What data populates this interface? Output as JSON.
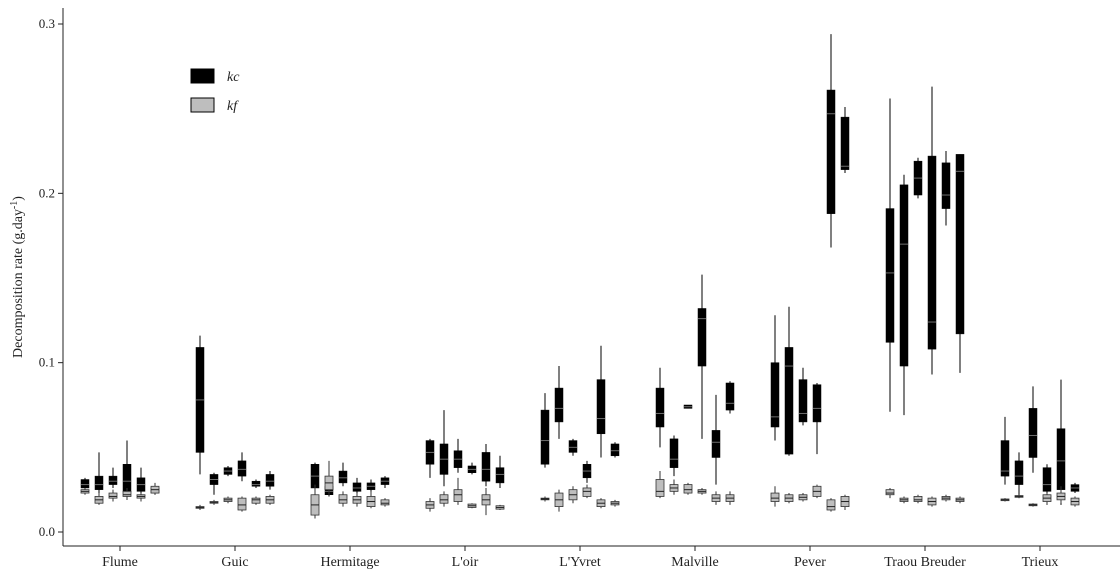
{
  "chart_data": {
    "type": "boxplot",
    "ylabel": "Decomposition rate (g.day",
    "ylabel_sup": "-1",
    "ylabel_end": ")",
    "ylim": [
      0,
      0.3
    ],
    "yticks": [
      "0.0",
      "0.1",
      "0.2",
      "0.3"
    ],
    "grid": false,
    "legend_position": "top-left",
    "legend": [
      {
        "name": "kc",
        "color": "#000000"
      },
      {
        "name": "kf",
        "color": "#bebebe"
      }
    ],
    "categories": [
      "Flume",
      "Guic",
      "Hermitage",
      "L'oir",
      "L'Yvret",
      "Malville",
      "Pever",
      "Traou  Breuder",
      "Trieux"
    ],
    "groups": [
      {
        "kc": [
          {
            "q1": 0.026,
            "median": 0.028,
            "q3": 0.031,
            "whisker_low": 0.025,
            "whisker_high": 0.032
          },
          {
            "q1": 0.025,
            "median": 0.028,
            "q3": 0.033,
            "whisker_low": 0.023,
            "whisker_high": 0.047
          },
          {
            "q1": 0.028,
            "median": 0.03,
            "q3": 0.033,
            "whisker_low": 0.026,
            "whisker_high": 0.038
          },
          {
            "q1": 0.024,
            "median": 0.03,
            "q3": 0.04,
            "whisker_low": 0.019,
            "whisker_high": 0.054
          },
          {
            "q1": 0.024,
            "median": 0.028,
            "q3": 0.032,
            "whisker_low": 0.02,
            "whisker_high": 0.038
          },
          {
            "q1": 0.023,
            "median": 0.024,
            "q3": 0.026,
            "whisker_low": 0.022,
            "whisker_high": 0.028
          }
        ],
        "kf": [
          {
            "q1": 0.023,
            "median": 0.024,
            "q3": 0.025,
            "whisker_low": 0.022,
            "whisker_high": 0.026
          },
          {
            "q1": 0.017,
            "median": 0.019,
            "q3": 0.021,
            "whisker_low": 0.016,
            "whisker_high": 0.023
          },
          {
            "q1": 0.02,
            "median": 0.021,
            "q3": 0.023,
            "whisker_low": 0.018,
            "whisker_high": 0.025
          },
          {
            "q1": 0.021,
            "median": 0.022,
            "q3": 0.024,
            "whisker_low": 0.019,
            "whisker_high": 0.026
          },
          {
            "q1": 0.02,
            "median": 0.021,
            "q3": 0.022,
            "whisker_low": 0.018,
            "whisker_high": 0.023
          },
          {
            "q1": 0.023,
            "median": 0.025,
            "q3": 0.027,
            "whisker_low": 0.022,
            "whisker_high": 0.029
          }
        ]
      },
      {
        "kc": [
          {
            "q1": 0.047,
            "median": 0.078,
            "q3": 0.109,
            "whisker_low": 0.034,
            "whisker_high": 0.116
          },
          {
            "q1": 0.028,
            "median": 0.031,
            "q3": 0.034,
            "whisker_low": 0.022,
            "whisker_high": 0.035
          },
          {
            "q1": 0.034,
            "median": 0.036,
            "q3": 0.038,
            "whisker_low": 0.033,
            "whisker_high": 0.039
          },
          {
            "q1": 0.033,
            "median": 0.037,
            "q3": 0.042,
            "whisker_low": 0.03,
            "whisker_high": 0.047
          },
          {
            "q1": 0.027,
            "median": 0.028,
            "q3": 0.03,
            "whisker_low": 0.026,
            "whisker_high": 0.031
          },
          {
            "q1": 0.027,
            "median": 0.03,
            "q3": 0.034,
            "whisker_low": 0.025,
            "whisker_high": 0.036
          }
        ],
        "kf": [
          {
            "q1": 0.014,
            "median": 0.0145,
            "q3": 0.015,
            "whisker_low": 0.013,
            "whisker_high": 0.016
          },
          {
            "q1": 0.017,
            "median": 0.0175,
            "q3": 0.018,
            "whisker_low": 0.016,
            "whisker_high": 0.019
          },
          {
            "q1": 0.018,
            "median": 0.019,
            "q3": 0.02,
            "whisker_low": 0.017,
            "whisker_high": 0.021
          },
          {
            "q1": 0.013,
            "median": 0.016,
            "q3": 0.02,
            "whisker_low": 0.012,
            "whisker_high": 0.021
          },
          {
            "q1": 0.017,
            "median": 0.019,
            "q3": 0.02,
            "whisker_low": 0.016,
            "whisker_high": 0.021
          },
          {
            "q1": 0.017,
            "median": 0.019,
            "q3": 0.021,
            "whisker_low": 0.016,
            "whisker_high": 0.022
          }
        ]
      },
      {
        "kc": [
          {
            "q1": 0.026,
            "median": 0.033,
            "q3": 0.04,
            "whisker_low": 0.02,
            "whisker_high": 0.041
          },
          {
            "q1": 0.022,
            "median": 0.024,
            "q3": 0.027,
            "whisker_low": 0.021,
            "whisker_high": 0.036
          },
          {
            "q1": 0.029,
            "median": 0.032,
            "q3": 0.036,
            "whisker_low": 0.027,
            "whisker_high": 0.041
          },
          {
            "q1": 0.024,
            "median": 0.026,
            "q3": 0.029,
            "whisker_low": 0.022,
            "whisker_high": 0.032
          },
          {
            "q1": 0.025,
            "median": 0.027,
            "q3": 0.029,
            "whisker_low": 0.023,
            "whisker_high": 0.031
          },
          {
            "q1": 0.028,
            "median": 0.03,
            "q3": 0.032,
            "whisker_low": 0.026,
            "whisker_high": 0.033
          }
        ],
        "kf": [
          {
            "q1": 0.01,
            "median": 0.016,
            "q3": 0.022,
            "whisker_low": 0.008,
            "whisker_high": 0.028
          },
          {
            "q1": 0.025,
            "median": 0.029,
            "q3": 0.033,
            "whisker_low": 0.022,
            "whisker_high": 0.042
          },
          {
            "q1": 0.017,
            "median": 0.019,
            "q3": 0.022,
            "whisker_low": 0.015,
            "whisker_high": 0.024
          },
          {
            "q1": 0.017,
            "median": 0.019,
            "q3": 0.021,
            "whisker_low": 0.015,
            "whisker_high": 0.023
          },
          {
            "q1": 0.015,
            "median": 0.018,
            "q3": 0.021,
            "whisker_low": 0.014,
            "whisker_high": 0.024
          },
          {
            "q1": 0.016,
            "median": 0.017,
            "q3": 0.019,
            "whisker_low": 0.015,
            "whisker_high": 0.02
          }
        ]
      },
      {
        "kc": [
          {
            "q1": 0.04,
            "median": 0.047,
            "q3": 0.054,
            "whisker_low": 0.032,
            "whisker_high": 0.055
          },
          {
            "q1": 0.034,
            "median": 0.043,
            "q3": 0.052,
            "whisker_low": 0.027,
            "whisker_high": 0.072
          },
          {
            "q1": 0.038,
            "median": 0.043,
            "q3": 0.048,
            "whisker_low": 0.035,
            "whisker_high": 0.055
          },
          {
            "q1": 0.035,
            "median": 0.037,
            "q3": 0.039,
            "whisker_low": 0.034,
            "whisker_high": 0.041
          },
          {
            "q1": 0.03,
            "median": 0.037,
            "q3": 0.047,
            "whisker_low": 0.027,
            "whisker_high": 0.052
          },
          {
            "q1": 0.029,
            "median": 0.034,
            "q3": 0.038,
            "whisker_low": 0.026,
            "whisker_high": 0.045
          }
        ],
        "kf": [
          {
            "q1": 0.014,
            "median": 0.016,
            "q3": 0.018,
            "whisker_low": 0.012,
            "whisker_high": 0.02
          },
          {
            "q1": 0.017,
            "median": 0.019,
            "q3": 0.022,
            "whisker_low": 0.015,
            "whisker_high": 0.024
          },
          {
            "q1": 0.018,
            "median": 0.022,
            "q3": 0.025,
            "whisker_low": 0.016,
            "whisker_high": 0.032
          },
          {
            "q1": 0.0145,
            "median": 0.0155,
            "q3": 0.0165,
            "whisker_low": 0.014,
            "whisker_high": 0.017
          },
          {
            "q1": 0.016,
            "median": 0.019,
            "q3": 0.022,
            "whisker_low": 0.01,
            "whisker_high": 0.026
          },
          {
            "q1": 0.0135,
            "median": 0.0145,
            "q3": 0.0155,
            "whisker_low": 0.013,
            "whisker_high": 0.016
          }
        ]
      },
      {
        "kc": [
          {
            "q1": 0.04,
            "median": 0.054,
            "q3": 0.072,
            "whisker_low": 0.038,
            "whisker_high": 0.082
          },
          {
            "q1": 0.065,
            "median": 0.073,
            "q3": 0.085,
            "whisker_low": 0.055,
            "whisker_high": 0.098
          },
          {
            "q1": 0.047,
            "median": 0.05,
            "q3": 0.054,
            "whisker_low": 0.045,
            "whisker_high": 0.055
          },
          {
            "q1": 0.032,
            "median": 0.036,
            "q3": 0.04,
            "whisker_low": 0.029,
            "whisker_high": 0.042
          },
          {
            "q1": 0.058,
            "median": 0.067,
            "q3": 0.09,
            "whisker_low": 0.044,
            "whisker_high": 0.11
          },
          {
            "q1": 0.045,
            "median": 0.048,
            "q3": 0.052,
            "whisker_low": 0.044,
            "whisker_high": 0.053
          }
        ],
        "kf": [
          {
            "q1": 0.019,
            "median": 0.0195,
            "q3": 0.02,
            "whisker_low": 0.018,
            "whisker_high": 0.021
          },
          {
            "q1": 0.015,
            "median": 0.019,
            "q3": 0.023,
            "whisker_low": 0.012,
            "whisker_high": 0.025
          },
          {
            "q1": 0.019,
            "median": 0.022,
            "q3": 0.025,
            "whisker_low": 0.017,
            "whisker_high": 0.027
          },
          {
            "q1": 0.021,
            "median": 0.024,
            "q3": 0.026,
            "whisker_low": 0.02,
            "whisker_high": 0.028
          },
          {
            "q1": 0.015,
            "median": 0.017,
            "q3": 0.019,
            "whisker_low": 0.014,
            "whisker_high": 0.02
          },
          {
            "q1": 0.016,
            "median": 0.017,
            "q3": 0.018,
            "whisker_low": 0.015,
            "whisker_high": 0.019
          }
        ]
      },
      {
        "kc": [
          {
            "q1": 0.062,
            "median": 0.07,
            "q3": 0.085,
            "whisker_low": 0.05,
            "whisker_high": 0.097
          },
          {
            "q1": 0.038,
            "median": 0.043,
            "q3": 0.055,
            "whisker_low": 0.033,
            "whisker_high": 0.057
          },
          {
            "q1": 0.073,
            "median": 0.074,
            "q3": 0.075,
            "whisker_low": 0.073,
            "whisker_high": 0.075
          },
          {
            "q1": 0.098,
            "median": 0.126,
            "q3": 0.132,
            "whisker_low": 0.055,
            "whisker_high": 0.152
          },
          {
            "q1": 0.044,
            "median": 0.053,
            "q3": 0.06,
            "whisker_low": 0.028,
            "whisker_high": 0.081
          },
          {
            "q1": 0.072,
            "median": 0.076,
            "q3": 0.088,
            "whisker_low": 0.07,
            "whisker_high": 0.089
          }
        ],
        "kf": [
          {
            "q1": 0.021,
            "median": 0.024,
            "q3": 0.031,
            "whisker_low": 0.02,
            "whisker_high": 0.036
          },
          {
            "q1": 0.024,
            "median": 0.026,
            "q3": 0.028,
            "whisker_low": 0.022,
            "whisker_high": 0.031
          },
          {
            "q1": 0.023,
            "median": 0.025,
            "q3": 0.028,
            "whisker_low": 0.022,
            "whisker_high": 0.029
          },
          {
            "q1": 0.023,
            "median": 0.024,
            "q3": 0.025,
            "whisker_low": 0.022,
            "whisker_high": 0.026
          },
          {
            "q1": 0.018,
            "median": 0.02,
            "q3": 0.022,
            "whisker_low": 0.016,
            "whisker_high": 0.024
          },
          {
            "q1": 0.018,
            "median": 0.02,
            "q3": 0.022,
            "whisker_low": 0.016,
            "whisker_high": 0.024
          }
        ]
      },
      {
        "kc": [
          {
            "q1": 0.062,
            "median": 0.068,
            "q3": 0.1,
            "whisker_low": 0.054,
            "whisker_high": 0.128
          },
          {
            "q1": 0.046,
            "median": 0.098,
            "q3": 0.109,
            "whisker_low": 0.045,
            "whisker_high": 0.133
          },
          {
            "q1": 0.065,
            "median": 0.07,
            "q3": 0.09,
            "whisker_low": 0.063,
            "whisker_high": 0.097
          },
          {
            "q1": 0.065,
            "median": 0.073,
            "q3": 0.087,
            "whisker_low": 0.046,
            "whisker_high": 0.088
          },
          {
            "q1": 0.188,
            "median": 0.247,
            "q3": 0.261,
            "whisker_low": 0.168,
            "whisker_high": 0.294
          },
          {
            "q1": 0.214,
            "median": 0.216,
            "q3": 0.245,
            "whisker_low": 0.212,
            "whisker_high": 0.251
          }
        ],
        "kf": [
          {
            "q1": 0.018,
            "median": 0.02,
            "q3": 0.023,
            "whisker_low": 0.015,
            "whisker_high": 0.027
          },
          {
            "q1": 0.018,
            "median": 0.02,
            "q3": 0.022,
            "whisker_low": 0.017,
            "whisker_high": 0.023
          },
          {
            "q1": 0.019,
            "median": 0.0205,
            "q3": 0.022,
            "whisker_low": 0.018,
            "whisker_high": 0.023
          },
          {
            "q1": 0.021,
            "median": 0.024,
            "q3": 0.027,
            "whisker_low": 0.02,
            "whisker_high": 0.028
          },
          {
            "q1": 0.013,
            "median": 0.015,
            "q3": 0.019,
            "whisker_low": 0.012,
            "whisker_high": 0.02
          },
          {
            "q1": 0.015,
            "median": 0.018,
            "q3": 0.021,
            "whisker_low": 0.013,
            "whisker_high": 0.022
          }
        ]
      },
      {
        "kc": [
          {
            "q1": 0.112,
            "median": 0.153,
            "q3": 0.191,
            "whisker_low": 0.071,
            "whisker_high": 0.256
          },
          {
            "q1": 0.098,
            "median": 0.17,
            "q3": 0.205,
            "whisker_low": 0.069,
            "whisker_high": 0.211
          },
          {
            "q1": 0.199,
            "median": 0.209,
            "q3": 0.219,
            "whisker_low": 0.197,
            "whisker_high": 0.221
          },
          {
            "q1": 0.108,
            "median": 0.124,
            "q3": 0.222,
            "whisker_low": 0.093,
            "whisker_high": 0.263
          },
          {
            "q1": 0.191,
            "median": 0.199,
            "q3": 0.218,
            "whisker_low": 0.181,
            "whisker_high": 0.225
          },
          {
            "q1": 0.117,
            "median": 0.213,
            "q3": 0.223,
            "whisker_low": 0.094,
            "whisker_high": 0.223
          }
        ],
        "kf": [
          {
            "q1": 0.022,
            "median": 0.023,
            "q3": 0.025,
            "whisker_low": 0.02,
            "whisker_high": 0.026
          },
          {
            "q1": 0.018,
            "median": 0.019,
            "q3": 0.02,
            "whisker_low": 0.017,
            "whisker_high": 0.021
          },
          {
            "q1": 0.018,
            "median": 0.019,
            "q3": 0.021,
            "whisker_low": 0.017,
            "whisker_high": 0.022
          },
          {
            "q1": 0.016,
            "median": 0.018,
            "q3": 0.02,
            "whisker_low": 0.015,
            "whisker_high": 0.021
          },
          {
            "q1": 0.019,
            "median": 0.02,
            "q3": 0.021,
            "whisker_low": 0.018,
            "whisker_high": 0.022
          },
          {
            "q1": 0.018,
            "median": 0.019,
            "q3": 0.02,
            "whisker_low": 0.017,
            "whisker_high": 0.021
          }
        ]
      },
      {
        "kc": [
          {
            "q1": 0.033,
            "median": 0.036,
            "q3": 0.054,
            "whisker_low": 0.028,
            "whisker_high": 0.068
          },
          {
            "q1": 0.028,
            "median": 0.033,
            "q3": 0.042,
            "whisker_low": 0.02,
            "whisker_high": 0.047
          },
          {
            "q1": 0.044,
            "median": 0.057,
            "q3": 0.073,
            "whisker_low": 0.035,
            "whisker_high": 0.086
          },
          {
            "q1": 0.024,
            "median": 0.028,
            "q3": 0.038,
            "whisker_low": 0.016,
            "whisker_high": 0.04
          },
          {
            "q1": 0.025,
            "median": 0.042,
            "q3": 0.061,
            "whisker_low": 0.016,
            "whisker_high": 0.09
          },
          {
            "q1": 0.024,
            "median": 0.026,
            "q3": 0.028,
            "whisker_low": 0.023,
            "whisker_high": 0.029
          }
        ],
        "kf": [
          {
            "q1": 0.0185,
            "median": 0.019,
            "q3": 0.0195,
            "whisker_low": 0.018,
            "whisker_high": 0.02
          },
          {
            "q1": 0.0205,
            "median": 0.021,
            "q3": 0.0215,
            "whisker_low": 0.02,
            "whisker_high": 0.022
          },
          {
            "q1": 0.0155,
            "median": 0.016,
            "q3": 0.0165,
            "whisker_low": 0.015,
            "whisker_high": 0.017
          },
          {
            "q1": 0.018,
            "median": 0.02,
            "q3": 0.022,
            "whisker_low": 0.016,
            "whisker_high": 0.023
          },
          {
            "q1": 0.019,
            "median": 0.021,
            "q3": 0.023,
            "whisker_low": 0.017,
            "whisker_high": 0.027
          },
          {
            "q1": 0.016,
            "median": 0.018,
            "q3": 0.02,
            "whisker_low": 0.015,
            "whisker_high": 0.021
          }
        ]
      }
    ]
  }
}
